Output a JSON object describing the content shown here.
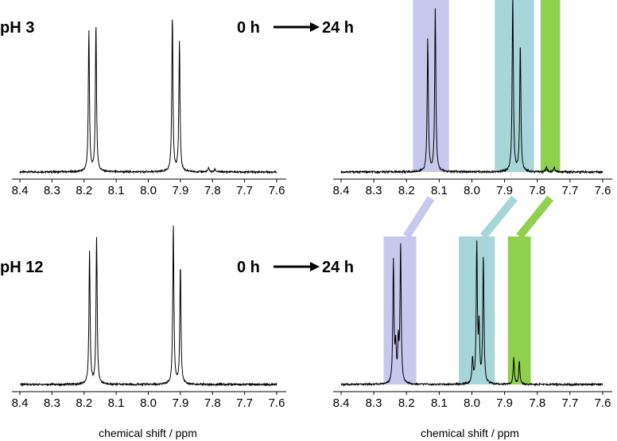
{
  "figure": {
    "row_labels": [
      "pH 3",
      "pH 12"
    ],
    "time_start": "0 h",
    "time_end": "24 h",
    "xlabel": "chemical shift / ppm"
  },
  "colors": {
    "line": "#000000",
    "lavender": "#c8c8ee",
    "teal": "#a6d6d8",
    "green": "#8fd14f"
  },
  "chart_data": [
    {
      "type": "line",
      "panel": "pH 3 at 0 h",
      "xlabel": "",
      "xlim": [
        8.4,
        7.6
      ],
      "x_ticks": [
        "8.4",
        "8.3",
        "8.2",
        "8.1",
        "8.0",
        "7.9",
        "7.8",
        "7.7",
        "7.6"
      ],
      "baseline": 0.0,
      "peaks": [
        {
          "ppm": 8.185,
          "height": 1.0
        },
        {
          "ppm": 8.163,
          "height": 1.05
        },
        {
          "ppm": 7.925,
          "height": 1.1
        },
        {
          "ppm": 7.903,
          "height": 0.92
        },
        {
          "ppm": 7.812,
          "height": 0.03
        },
        {
          "ppm": 7.792,
          "height": 0.02
        }
      ],
      "highlights": []
    },
    {
      "type": "line",
      "panel": "pH 3 at 24 h",
      "xlabel": "",
      "xlim": [
        8.4,
        7.6
      ],
      "x_ticks": [
        "8.4",
        "8.3",
        "8.2",
        "8.1",
        "8.0",
        "7.9",
        "7.8",
        "7.7",
        "7.6"
      ],
      "baseline": 0.0,
      "peaks": [
        {
          "ppm": 8.135,
          "height": 0.85
        },
        {
          "ppm": 8.112,
          "height": 1.05
        },
        {
          "ppm": 7.875,
          "height": 1.15
        },
        {
          "ppm": 7.852,
          "height": 0.82
        },
        {
          "ppm": 7.772,
          "height": 0.03
        },
        {
          "ppm": 7.748,
          "height": 0.03
        }
      ],
      "highlights": [
        {
          "from": 8.18,
          "to": 8.07,
          "color": "lavender"
        },
        {
          "from": 7.93,
          "to": 7.81,
          "color": "teal"
        },
        {
          "from": 7.79,
          "to": 7.73,
          "color": "green"
        }
      ]
    },
    {
      "type": "line",
      "panel": "pH 12 at 0 h",
      "xlabel": "chemical shift / ppm",
      "xlim": [
        8.4,
        7.6
      ],
      "x_ticks": [
        "8.4",
        "8.3",
        "8.2",
        "8.1",
        "8.0",
        "7.9",
        "7.8",
        "7.7",
        "7.6"
      ],
      "baseline": 0.0,
      "peaks": [
        {
          "ppm": 8.183,
          "height": 0.92
        },
        {
          "ppm": 8.161,
          "height": 1.02
        },
        {
          "ppm": 7.922,
          "height": 1.1
        },
        {
          "ppm": 7.9,
          "height": 0.82
        }
      ],
      "highlights": []
    },
    {
      "type": "line",
      "panel": "pH 12 at 24 h",
      "xlabel": "chemical shift / ppm",
      "xlim": [
        8.4,
        7.6
      ],
      "x_ticks": [
        "8.4",
        "8.3",
        "8.2",
        "8.1",
        "8.0",
        "7.9",
        "7.8",
        "7.7",
        "7.6"
      ],
      "baseline": 0.0,
      "peaks": [
        {
          "ppm": 8.24,
          "height": 0.88
        },
        {
          "ppm": 8.233,
          "height": 0.25
        },
        {
          "ppm": 8.225,
          "height": 0.28
        },
        {
          "ppm": 8.218,
          "height": 1.0
        },
        {
          "ppm": 7.998,
          "height": 0.18
        },
        {
          "ppm": 7.985,
          "height": 1.0
        },
        {
          "ppm": 7.978,
          "height": 0.4
        },
        {
          "ppm": 7.965,
          "height": 0.92
        },
        {
          "ppm": 7.872,
          "height": 0.2
        },
        {
          "ppm": 7.855,
          "height": 0.17
        }
      ],
      "highlights": [
        {
          "from": 8.27,
          "to": 8.17,
          "color": "lavender"
        },
        {
          "from": 8.04,
          "to": 7.93,
          "color": "teal"
        },
        {
          "from": 7.89,
          "to": 7.82,
          "color": "green"
        }
      ]
    }
  ],
  "connectors": [
    {
      "top_ppm": 8.125,
      "bottom_ppm": 8.2,
      "color": "lavender"
    },
    {
      "top_ppm": 7.87,
      "bottom_ppm": 7.965,
      "color": "teal"
    },
    {
      "top_ppm": 7.76,
      "bottom_ppm": 7.855,
      "color": "green"
    }
  ]
}
